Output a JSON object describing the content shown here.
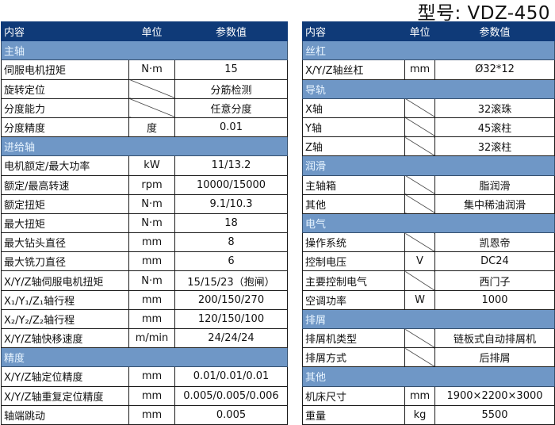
{
  "model_title": "型号: VDZ-450",
  "header": {
    "col1": "内容",
    "col2": "单位",
    "col3": "参数值"
  },
  "left": [
    {
      "section": "主轴"
    },
    {
      "name": "伺服电机扭矩",
      "unit": "N·m",
      "value": "15"
    },
    {
      "name": "旋转定位",
      "unit": null,
      "value": "分筋检测"
    },
    {
      "name": "分度能力",
      "unit": null,
      "value": "任意分度"
    },
    {
      "name": "分度精度",
      "unit": "度",
      "value": "0.01"
    },
    {
      "section": "进给轴"
    },
    {
      "name": "电机额定/最大功率",
      "unit": "kW",
      "value": "11/13.2"
    },
    {
      "name": "额定/最高转速",
      "unit": "rpm",
      "value": "10000/15000"
    },
    {
      "name": "额定扭矩",
      "unit": "N·m",
      "value": "9.1/10.3"
    },
    {
      "name": "最大扭矩",
      "unit": "N·m",
      "value": "18"
    },
    {
      "name": "最大钻头直径",
      "unit": "mm",
      "value": "8"
    },
    {
      "name": "最大铣刀直径",
      "unit": "mm",
      "value": "6"
    },
    {
      "name": "X/Y/Z轴伺服电机扭矩",
      "unit": "N·m",
      "value": "15/15/23（抱闸）"
    },
    {
      "name": "X₁/Y₁/Z₁轴行程",
      "unit": "mm",
      "value": "200/150/270"
    },
    {
      "name": "X₂/Y₂/Z₂轴行程",
      "unit": "mm",
      "value": "120/150/100"
    },
    {
      "name": "X/Y/Z轴快移速度",
      "unit": "m/min",
      "value": "24/24/24"
    },
    {
      "section": "精度"
    },
    {
      "name": "X/Y/Z轴定位精度",
      "unit": "mm",
      "value": "0.01/0.01/0.01"
    },
    {
      "name": "X/Y/Z轴重复定位精度",
      "unit": "mm",
      "value": "0.005/0.005/0.006"
    },
    {
      "name": "轴端跳动",
      "unit": "mm",
      "value": "0.005"
    }
  ],
  "right": [
    {
      "section": "丝杠"
    },
    {
      "name": "X/Y/Z轴丝杠",
      "unit": "mm",
      "value": "Ø32*12"
    },
    {
      "section": "导轨"
    },
    {
      "name": "X轴",
      "unit": null,
      "value": "32滚珠"
    },
    {
      "name": "Y轴",
      "unit": null,
      "value": "45滚柱"
    },
    {
      "name": "Z轴",
      "unit": null,
      "value": "32滚柱"
    },
    {
      "section": "润滑"
    },
    {
      "name": "主轴箱",
      "unit": null,
      "value": "脂润滑"
    },
    {
      "name": "其他",
      "unit": null,
      "value": "集中稀油润滑"
    },
    {
      "section": "电气"
    },
    {
      "name": "操作系统",
      "unit": null,
      "value": "凯恩帝"
    },
    {
      "name": "控制电压",
      "unit": "V",
      "value": "DC24"
    },
    {
      "name": "主要控制电气",
      "unit": null,
      "value": "西门子"
    },
    {
      "name": "空调功率",
      "unit": "W",
      "value": "1000"
    },
    {
      "section": "排屑"
    },
    {
      "name": "排屑机类型",
      "unit": null,
      "value": "链板式自动排屑机"
    },
    {
      "name": "排屑方式",
      "unit": null,
      "value": "后排屑"
    },
    {
      "section": "其他"
    },
    {
      "name": "机床尺寸",
      "unit": "mm",
      "value": "1900×2200×3000"
    },
    {
      "name": "重量",
      "unit": "kg",
      "value": "5500"
    }
  ],
  "colors": {
    "header_bg": "#0f3a78",
    "section_bg": "#6f97c6"
  }
}
